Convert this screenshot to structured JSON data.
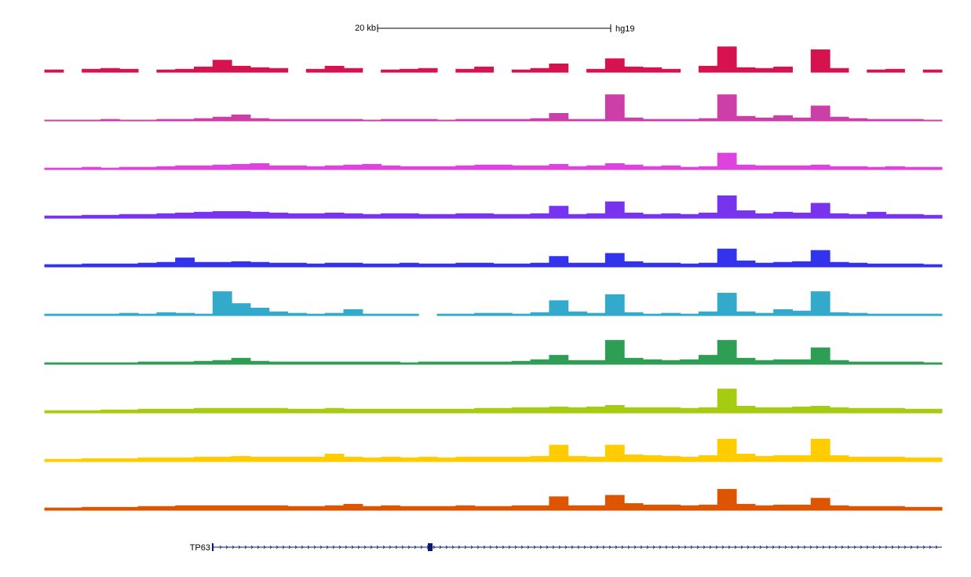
{
  "chart_data": {
    "type": "area",
    "scale_bar": {
      "label": "20 kb",
      "assembly": "hg19"
    },
    "gene": {
      "name": "TP63",
      "color": "#0d1a6b"
    },
    "ylim": [
      0,
      40
    ],
    "series": [
      {
        "color": "#d6134f",
        "values": [
          3,
          null,
          4,
          5,
          4,
          null,
          3,
          4,
          7,
          16,
          8,
          6,
          5,
          null,
          4,
          8,
          5,
          null,
          3,
          4,
          5,
          null,
          4,
          7,
          null,
          3,
          5,
          11,
          null,
          4,
          18,
          7,
          6,
          4,
          null,
          8,
          34,
          6,
          5,
          7,
          null,
          30,
          5,
          null,
          3,
          4,
          null,
          3
        ]
      },
      {
        "color": "#cc3fa8",
        "values": [
          1,
          1,
          1,
          2,
          1,
          1,
          2,
          2,
          3,
          5,
          8,
          3,
          2,
          2,
          2,
          2,
          2,
          1,
          2,
          2,
          2,
          1,
          2,
          2,
          2,
          2,
          3,
          10,
          2,
          2,
          35,
          4,
          2,
          2,
          2,
          3,
          35,
          6,
          4,
          7,
          4,
          20,
          5,
          3,
          2,
          2,
          2,
          1
        ]
      },
      {
        "color": "#dd44dd",
        "values": [
          2,
          2,
          3,
          2,
          3,
          3,
          4,
          5,
          5,
          6,
          7,
          8,
          5,
          5,
          4,
          5,
          6,
          7,
          5,
          4,
          4,
          4,
          5,
          6,
          6,
          5,
          5,
          7,
          4,
          5,
          8,
          6,
          4,
          5,
          3,
          4,
          22,
          6,
          5,
          5,
          5,
          6,
          4,
          4,
          3,
          4,
          3,
          3
        ]
      },
      {
        "color": "#7733ee",
        "values": [
          3,
          3,
          4,
          4,
          5,
          5,
          6,
          7,
          8,
          9,
          9,
          8,
          7,
          6,
          6,
          7,
          6,
          5,
          6,
          6,
          5,
          5,
          6,
          6,
          5,
          5,
          6,
          16,
          5,
          6,
          22,
          7,
          5,
          6,
          5,
          7,
          30,
          10,
          6,
          8,
          7,
          20,
          6,
          5,
          8,
          5,
          5,
          4
        ]
      },
      {
        "color": "#3333ee",
        "values": [
          3,
          3,
          4,
          4,
          4,
          5,
          6,
          12,
          6,
          6,
          7,
          6,
          5,
          5,
          4,
          5,
          5,
          4,
          4,
          5,
          4,
          4,
          5,
          5,
          4,
          4,
          5,
          14,
          5,
          5,
          18,
          7,
          5,
          5,
          4,
          5,
          24,
          8,
          5,
          6,
          7,
          22,
          6,
          5,
          4,
          4,
          4,
          3
        ]
      },
      {
        "color": "#33aacc",
        "values": [
          2,
          2,
          2,
          2,
          3,
          2,
          4,
          3,
          2,
          32,
          16,
          10,
          5,
          3,
          2,
          3,
          8,
          2,
          2,
          2,
          null,
          2,
          2,
          3,
          3,
          2,
          4,
          20,
          5,
          3,
          28,
          4,
          2,
          3,
          2,
          5,
          30,
          5,
          3,
          8,
          6,
          32,
          4,
          3,
          2,
          2,
          2,
          2
        ]
      },
      {
        "color": "#2e9e55",
        "values": [
          2,
          2,
          2,
          2,
          2,
          3,
          3,
          3,
          4,
          5,
          8,
          4,
          3,
          3,
          3,
          3,
          3,
          3,
          3,
          2,
          3,
          3,
          3,
          3,
          3,
          4,
          6,
          12,
          5,
          5,
          32,
          8,
          6,
          5,
          6,
          12,
          32,
          8,
          5,
          6,
          6,
          22,
          5,
          3,
          3,
          3,
          3,
          2
        ]
      },
      {
        "color": "#a6cc12",
        "values": [
          3,
          3,
          3,
          4,
          4,
          5,
          5,
          5,
          6,
          6,
          6,
          6,
          6,
          5,
          5,
          6,
          5,
          5,
          5,
          5,
          5,
          5,
          5,
          6,
          6,
          7,
          7,
          8,
          7,
          8,
          10,
          7,
          7,
          7,
          6,
          7,
          32,
          9,
          7,
          7,
          8,
          9,
          7,
          6,
          6,
          6,
          5,
          5
        ]
      },
      {
        "color": "#ffcc00",
        "values": [
          3,
          3,
          4,
          4,
          4,
          5,
          5,
          5,
          6,
          6,
          7,
          6,
          6,
          6,
          6,
          10,
          6,
          5,
          6,
          5,
          6,
          5,
          6,
          6,
          6,
          6,
          7,
          22,
          7,
          6,
          22,
          9,
          8,
          7,
          6,
          8,
          30,
          10,
          7,
          8,
          8,
          30,
          8,
          6,
          6,
          6,
          5,
          5
        ]
      },
      {
        "color": "#dd5500",
        "values": [
          3,
          3,
          4,
          4,
          4,
          5,
          5,
          6,
          6,
          6,
          6,
          6,
          6,
          5,
          5,
          6,
          8,
          5,
          6,
          5,
          5,
          5,
          6,
          5,
          5,
          6,
          6,
          18,
          6,
          6,
          20,
          9,
          7,
          7,
          6,
          7,
          28,
          8,
          6,
          7,
          7,
          16,
          6,
          5,
          5,
          5,
          4,
          4
        ]
      }
    ]
  }
}
